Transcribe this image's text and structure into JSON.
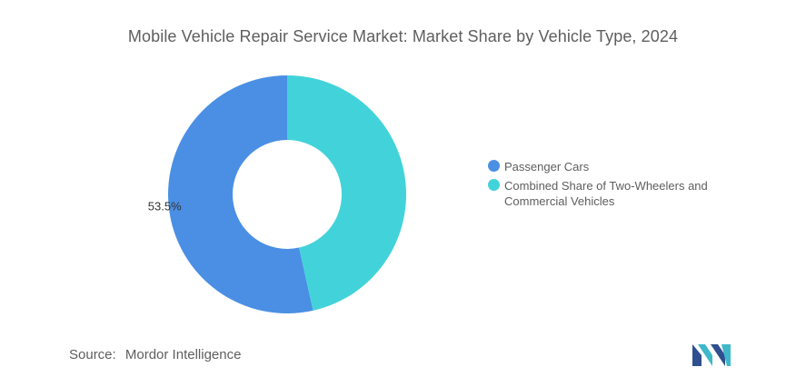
{
  "chart_data": {
    "type": "pie",
    "variant": "donut",
    "title": "Mobile Vehicle Repair Service Market: Market Share by Vehicle Type, 2024",
    "categories": [
      "Passenger Cars",
      "Combined Share of Two-Wheelers and Commercial Vehicles"
    ],
    "values": [
      53.5,
      46.5
    ],
    "unit": "%",
    "data_labels": [
      "53.5%",
      ""
    ],
    "colors": [
      "#4a8fe3",
      "#42d3da"
    ],
    "legend_position": "right"
  },
  "source": {
    "label": "Source:",
    "text": "Mordor Intelligence"
  },
  "logo": {
    "icon": "mordor-intelligence-logo",
    "colors": [
      "#2f4f8f",
      "#3fb8c9"
    ]
  }
}
